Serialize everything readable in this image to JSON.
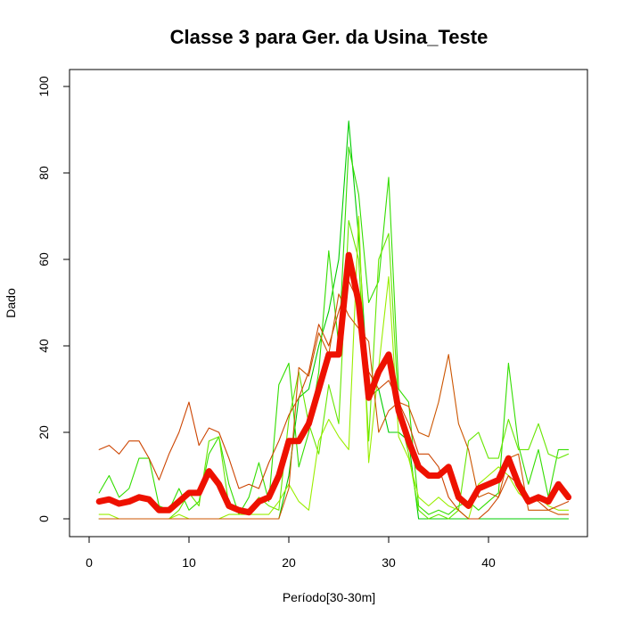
{
  "chart_data": {
    "type": "line",
    "title": "Classe  3 para Ger. da Usina_Teste",
    "xlabel": "Período[30-30m]",
    "ylabel": "Dado",
    "xlim": [
      1,
      48
    ],
    "ylim": [
      0,
      100
    ],
    "xticks": [
      0,
      10,
      20,
      30,
      40
    ],
    "yticks": [
      0,
      20,
      40,
      60,
      80,
      100
    ],
    "grid": false,
    "legend": "none",
    "x": [
      1,
      2,
      3,
      4,
      5,
      6,
      7,
      8,
      9,
      10,
      11,
      12,
      13,
      14,
      15,
      16,
      17,
      18,
      19,
      20,
      21,
      22,
      23,
      24,
      25,
      26,
      27,
      28,
      29,
      30,
      31,
      32,
      33,
      34,
      35,
      36,
      37,
      38,
      39,
      40,
      41,
      42,
      43,
      44,
      45,
      46,
      47,
      48
    ],
    "series": [
      {
        "color": "#00cc00",
        "thick": false,
        "values": [
          0,
          0,
          0,
          0,
          0,
          0,
          0,
          0,
          0,
          0,
          0,
          0,
          0,
          0,
          0,
          0,
          0,
          0,
          0,
          10,
          28,
          30,
          40,
          48,
          60,
          92,
          65,
          28,
          30,
          20,
          20,
          18,
          0,
          0,
          0,
          0,
          0,
          0,
          0,
          0,
          0,
          0,
          0,
          0,
          0,
          0,
          0,
          0
        ]
      },
      {
        "color": "#33dd00",
        "thick": false,
        "values": [
          6,
          10,
          5,
          7,
          14,
          14,
          3,
          2,
          7,
          2,
          4,
          15,
          19,
          8,
          1,
          5,
          13,
          4,
          31,
          36,
          12,
          20,
          34,
          62,
          40,
          86,
          75,
          50,
          55,
          79,
          30,
          27,
          3,
          1,
          2,
          1,
          3,
          4,
          2,
          4,
          6,
          36,
          17,
          8,
          16,
          5,
          16,
          16
        ]
      },
      {
        "color": "#66e600",
        "thick": false,
        "values": [
          0,
          0,
          0,
          0,
          0,
          0,
          0,
          0,
          2,
          6,
          3,
          18,
          19,
          3,
          2,
          2,
          5,
          3,
          2,
          23,
          34,
          22,
          15,
          31,
          22,
          69,
          60,
          18,
          60,
          66,
          25,
          15,
          2,
          0,
          1,
          0,
          2,
          18,
          20,
          14,
          14,
          23,
          16,
          16,
          22,
          15,
          14,
          15
        ]
      },
      {
        "color": "#99ee00",
        "thick": false,
        "values": [
          1,
          1,
          0,
          0,
          0,
          0,
          0,
          0,
          1,
          0,
          0,
          0,
          0,
          1,
          1,
          1,
          1,
          1,
          4,
          8,
          4,
          2,
          18,
          23,
          19,
          16,
          70,
          13,
          35,
          56,
          19,
          14,
          5,
          3,
          5,
          3,
          2,
          0,
          8,
          10,
          12,
          10,
          6,
          4,
          5,
          3,
          2,
          2
        ]
      },
      {
        "color": "#cc4400",
        "thick": false,
        "values": [
          16,
          17,
          15,
          18,
          18,
          14,
          9,
          15,
          20,
          27,
          17,
          21,
          20,
          14,
          7,
          8,
          7,
          13,
          18,
          24,
          28,
          34,
          45,
          40,
          48,
          55,
          50,
          34,
          30,
          32,
          27,
          22,
          15,
          15,
          12,
          5,
          2,
          0,
          0,
          2,
          5,
          10,
          8,
          5,
          4,
          2,
          3,
          4
        ]
      },
      {
        "color": "#cc5500",
        "thick": false,
        "values": [
          0,
          0,
          0,
          0,
          0,
          0,
          0,
          0,
          0,
          0,
          0,
          0,
          0,
          0,
          0,
          0,
          0,
          0,
          0,
          7,
          35,
          33,
          43,
          38,
          52,
          47,
          44,
          41,
          20,
          25,
          27,
          26,
          20,
          19,
          27,
          38,
          22,
          16,
          5,
          6,
          5,
          14,
          15,
          2,
          2,
          2,
          1,
          1
        ]
      },
      {
        "color": "#ee1100",
        "thick": true,
        "values": [
          4,
          4.5,
          3.5,
          4,
          5,
          4.5,
          2,
          2,
          4,
          6,
          6,
          11,
          8,
          3,
          2,
          1.5,
          4,
          5,
          10,
          18,
          18,
          22,
          30,
          38,
          38,
          61,
          50,
          28,
          34,
          38,
          25,
          18,
          12,
          10,
          10,
          12,
          5,
          3,
          7,
          8,
          9,
          14,
          8,
          4,
          5,
          4,
          8,
          5
        ]
      }
    ]
  }
}
